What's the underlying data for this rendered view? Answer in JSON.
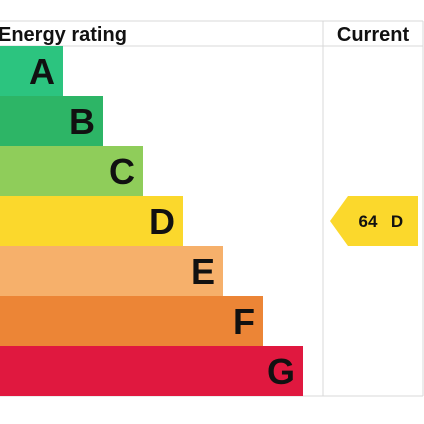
{
  "chart_data": {
    "type": "bar",
    "header": {
      "rating_label": "Energy rating",
      "current_label": "Current"
    },
    "bands": [
      {
        "letter": "A",
        "color": "#2cc47f"
      },
      {
        "letter": "B",
        "color": "#2db566"
      },
      {
        "letter": "C",
        "color": "#8fcd5a"
      },
      {
        "letter": "D",
        "color": "#fbd82c"
      },
      {
        "letter": "E",
        "color": "#f6b06b"
      },
      {
        "letter": "F",
        "color": "#ec8536"
      },
      {
        "letter": "G",
        "color": "#e0183f"
      }
    ],
    "current": {
      "score": "64",
      "band": "D",
      "color": "#fbd82c"
    },
    "grid_color": "#d9d9d9"
  }
}
